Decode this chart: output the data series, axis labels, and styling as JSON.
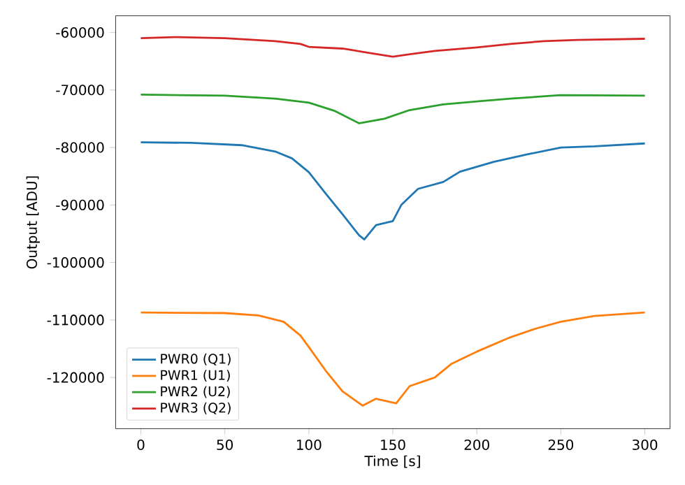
{
  "chart_data": {
    "type": "line",
    "xlabel": "Time [s]",
    "ylabel": "Output [ADU]",
    "xlim": [
      -15,
      315
    ],
    "ylim": [
      -128900,
      -57100
    ],
    "xticks": [
      0,
      50,
      100,
      150,
      200,
      250,
      300
    ],
    "yticks": [
      -120000,
      -110000,
      -100000,
      -90000,
      -80000,
      -70000,
      -60000
    ],
    "legend": "bottom left",
    "grid": false,
    "series": [
      {
        "name": "PWR0 (Q1)",
        "color": "#1f77b4",
        "x": [
          0,
          30,
          60,
          80,
          90,
          100,
          110,
          120,
          130,
          133,
          140,
          150,
          155,
          165,
          180,
          190,
          210,
          230,
          250,
          270,
          300
        ],
        "values": [
          -79100,
          -79200,
          -79600,
          -80700,
          -81900,
          -84300,
          -88000,
          -91600,
          -95300,
          -96000,
          -93500,
          -92800,
          -90000,
          -87200,
          -86000,
          -84200,
          -82500,
          -81200,
          -80000,
          -79800,
          -79300
        ]
      },
      {
        "name": "PWR1 (U1)",
        "color": "#ff7f0e",
        "x": [
          0,
          50,
          70,
          85,
          95,
          100,
          110,
          120,
          132,
          140,
          152,
          160,
          175,
          185,
          200,
          220,
          235,
          250,
          270,
          300
        ],
        "values": [
          -108700,
          -108800,
          -109200,
          -110300,
          -112700,
          -114700,
          -118800,
          -122400,
          -124900,
          -123700,
          -124500,
          -121500,
          -120000,
          -117600,
          -115500,
          -113000,
          -111500,
          -110300,
          -109300,
          -108700
        ]
      },
      {
        "name": "PWR2 (U2)",
        "color": "#2ca02c",
        "x": [
          0,
          50,
          80,
          100,
          115,
          130,
          145,
          160,
          180,
          200,
          220,
          250,
          300
        ],
        "values": [
          -70800,
          -71000,
          -71500,
          -72200,
          -73600,
          -75800,
          -75000,
          -73500,
          -72500,
          -72000,
          -71500,
          -70900,
          -71000
        ]
      },
      {
        "name": "PWR3 (Q2)",
        "color": "#d62728",
        "x": [
          0,
          20,
          50,
          80,
          95,
          100,
          120,
          135,
          150,
          160,
          175,
          200,
          220,
          240,
          260,
          300
        ],
        "values": [
          -61000,
          -60800,
          -61000,
          -61500,
          -62000,
          -62500,
          -62800,
          -63500,
          -64200,
          -63800,
          -63200,
          -62600,
          -62000,
          -61500,
          -61300,
          -61100
        ]
      }
    ]
  }
}
